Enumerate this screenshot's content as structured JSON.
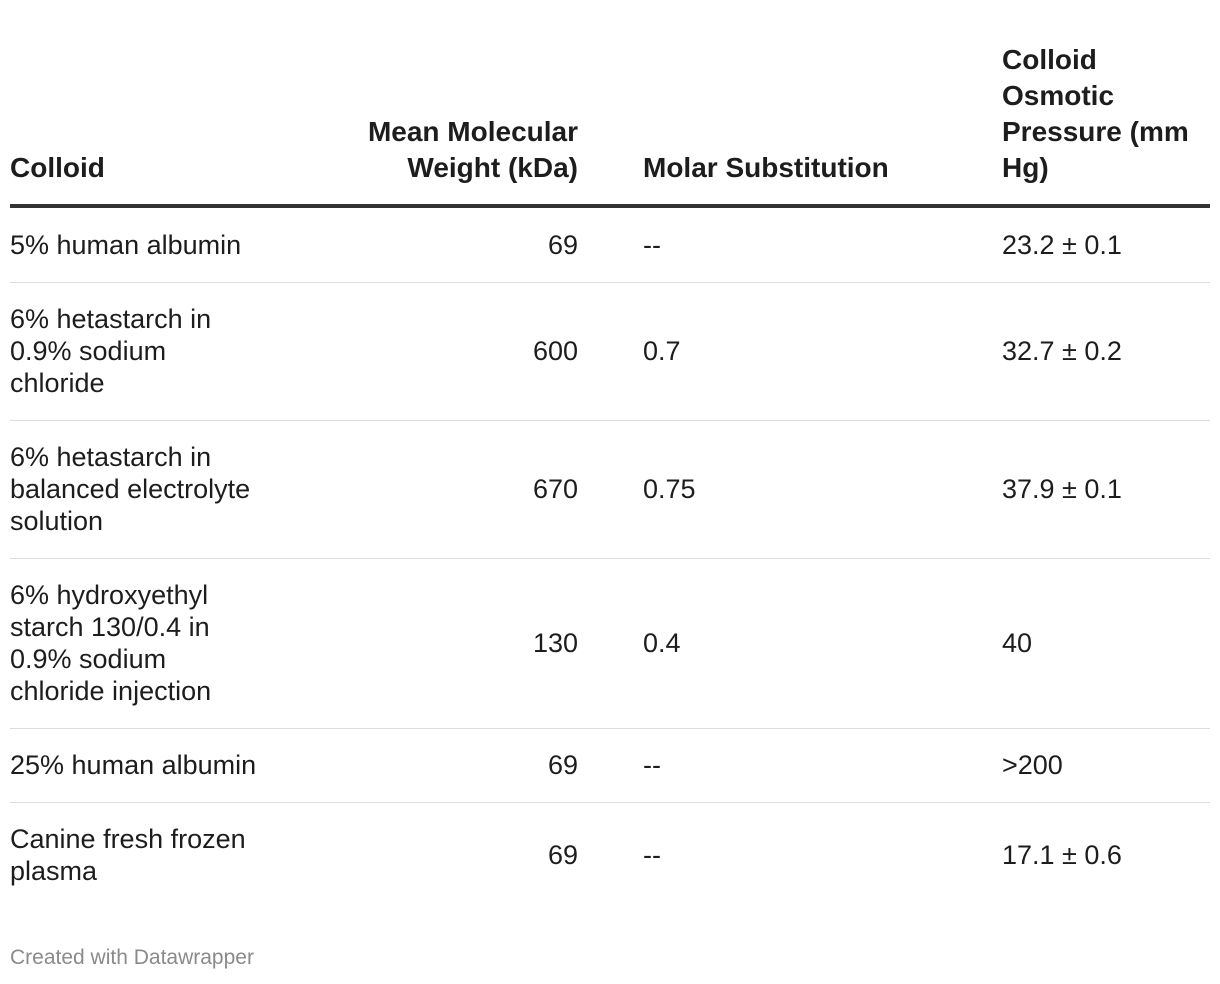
{
  "chart_data": {
    "type": "table",
    "columns": [
      "Colloid",
      "Mean Molecular Weight (kDa)",
      "Molar Substitution",
      "Colloid Osmotic Pressure (mm Hg)"
    ],
    "rows": [
      [
        "5% human albumin",
        "69",
        "--",
        "23.2 ± 0.1"
      ],
      [
        "6% hetastarch in 0.9% sodium chloride",
        "600",
        "0.7",
        "32.7 ± 0.2"
      ],
      [
        "6% hetastarch in balanced electrolyte solution",
        "670",
        "0.75",
        "37.9 ± 0.1"
      ],
      [
        "6% hydroxyethyl starch 130/0.4 in 0.9% sodium chloride injection",
        "130",
        "0.4",
        "40"
      ],
      [
        "25% human albumin",
        "69",
        "--",
        ">200"
      ],
      [
        "Canine fresh frozen plasma",
        "69",
        "--",
        "17.1 ± 0.6"
      ]
    ]
  },
  "footer": {
    "credit": "Created with Datawrapper"
  }
}
